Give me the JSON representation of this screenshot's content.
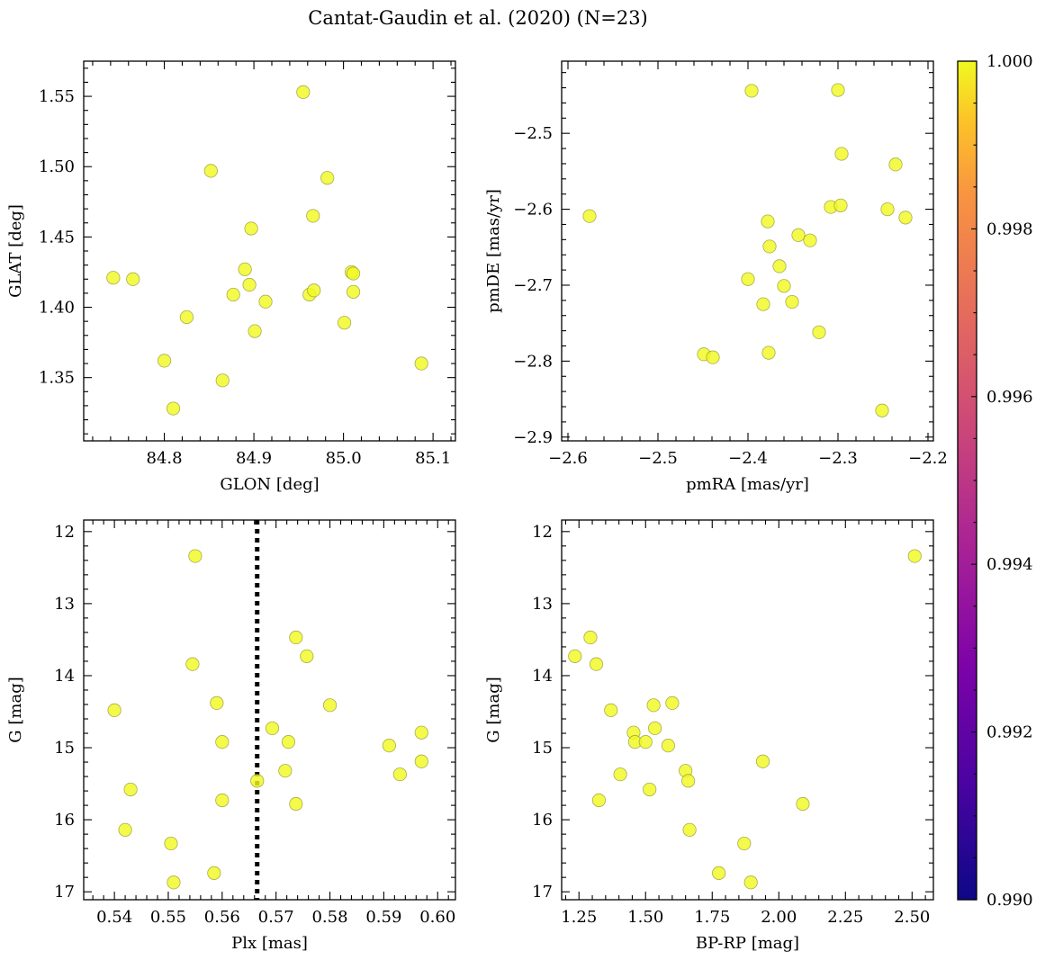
{
  "figure": {
    "title": "Cantat-Gaudin et al. (2020) (N=23)"
  },
  "colorbar": {
    "colormap": "plasma",
    "range": [
      0.99,
      1.0
    ],
    "ticks": [
      0.99,
      0.992,
      0.994,
      0.996,
      0.998,
      1.0
    ],
    "tick_labels": [
      "0.990",
      "0.992",
      "0.994",
      "0.996",
      "0.998",
      "1.000"
    ]
  },
  "chart_data": [
    {
      "type": "scatter",
      "id": "glon-glat",
      "xlabel": "GLON [deg]",
      "ylabel": "GLAT [deg]",
      "xlim": [
        84.71,
        85.125
      ],
      "ylim": [
        1.305,
        1.575
      ],
      "xticks": [
        84.8,
        84.9,
        85.0,
        85.1
      ],
      "xtick_labels": [
        "84.8",
        "84.9",
        "85.0",
        "85.1"
      ],
      "yticks": [
        1.35,
        1.4,
        1.45,
        1.5,
        1.55
      ],
      "ytick_labels": [
        "1.35",
        "1.40",
        "1.45",
        "1.50",
        "1.55"
      ],
      "point_color": "#f0f921",
      "x": [
        84.743,
        84.765,
        84.8,
        84.81,
        84.825,
        84.852,
        84.865,
        84.877,
        84.89,
        84.895,
        84.897,
        84.901,
        84.913,
        84.955,
        84.962,
        84.966,
        84.967,
        84.982,
        85.001,
        85.009,
        85.011,
        85.011,
        85.087
      ],
      "y": [
        1.421,
        1.42,
        1.362,
        1.328,
        1.393,
        1.497,
        1.348,
        1.409,
        1.427,
        1.416,
        1.456,
        1.383,
        1.404,
        1.553,
        1.409,
        1.465,
        1.412,
        1.492,
        1.389,
        1.425,
        1.424,
        1.411,
        1.36
      ]
    },
    {
      "type": "scatter",
      "id": "pmra-pmde",
      "xlabel": "pmRA [mas/yr]",
      "ylabel": "pmDE [mas/yr]",
      "xlim": [
        -2.607,
        -2.194
      ],
      "ylim": [
        -2.905,
        -2.405
      ],
      "xticks": [
        -2.6,
        -2.5,
        -2.4,
        -2.3,
        -2.2
      ],
      "xtick_labels": [
        "−2.6",
        "−2.5",
        "−2.4",
        "−2.3",
        "−2.2"
      ],
      "yticks": [
        -2.9,
        -2.8,
        -2.7,
        -2.6,
        -2.5
      ],
      "ytick_labels": [
        "−2.9",
        "−2.8",
        "−2.7",
        "−2.6",
        "−2.5"
      ],
      "point_color": "#f0f921",
      "x": [
        -2.576,
        -2.449,
        -2.439,
        -2.4,
        -2.396,
        -2.383,
        -2.378,
        -2.377,
        -2.376,
        -2.365,
        -2.36,
        -2.351,
        -2.344,
        -2.331,
        -2.321,
        -2.308,
        -2.3,
        -2.297,
        -2.296,
        -2.251,
        -2.245,
        -2.236,
        -2.225
      ],
      "y": [
        -2.609,
        -2.791,
        -2.795,
        -2.692,
        -2.444,
        -2.725,
        -2.616,
        -2.789,
        -2.649,
        -2.675,
        -2.701,
        -2.722,
        -2.634,
        -2.641,
        -2.762,
        -2.597,
        -2.443,
        -2.595,
        -2.527,
        -2.865,
        -2.6,
        -2.541,
        -2.611
      ]
    },
    {
      "type": "scatter",
      "id": "plx-g",
      "xlabel": "Plx [mas]",
      "ylabel": "G [mag]",
      "xlim": [
        0.5343,
        0.6033
      ],
      "ylim": [
        17.11,
        11.84
      ],
      "y_inverted": true,
      "xticks": [
        0.54,
        0.55,
        0.56,
        0.57,
        0.58,
        0.59,
        0.6
      ],
      "xtick_labels": [
        "0.54",
        "0.55",
        "0.56",
        "0.57",
        "0.58",
        "0.59",
        "0.60"
      ],
      "yticks": [
        12,
        13,
        14,
        15,
        16,
        17
      ],
      "ytick_labels": [
        "12",
        "13",
        "14",
        "15",
        "16",
        "17"
      ],
      "point_color": "#f0f921",
      "vline": {
        "x": 0.5665,
        "style": "dotted"
      },
      "x": [
        0.54,
        0.542,
        0.543,
        0.5505,
        0.551,
        0.5545,
        0.555,
        0.5585,
        0.559,
        0.56,
        0.56,
        0.5665,
        0.5693,
        0.5717,
        0.5723,
        0.5737,
        0.5737,
        0.5757,
        0.58,
        0.591,
        0.593,
        0.597,
        0.597
      ],
      "y": [
        14.48,
        16.14,
        15.58,
        16.33,
        16.87,
        13.84,
        12.34,
        16.74,
        14.38,
        14.92,
        15.73,
        15.46,
        14.73,
        15.32,
        14.92,
        13.47,
        15.78,
        13.73,
        14.41,
        14.97,
        15.37,
        14.79,
        15.19
      ]
    },
    {
      "type": "scatter",
      "id": "bprp-g",
      "xlabel": "BP-RP [mag]",
      "ylabel": "G [mag]",
      "xlim": [
        1.185,
        2.58
      ],
      "ylim": [
        17.11,
        11.84
      ],
      "y_inverted": true,
      "xticks": [
        1.25,
        1.5,
        1.75,
        2.0,
        2.25,
        2.5
      ],
      "xtick_labels": [
        "1.25",
        "1.50",
        "1.75",
        "2.00",
        "2.25",
        "2.50"
      ],
      "yticks": [
        12,
        13,
        14,
        15,
        16,
        17
      ],
      "ytick_labels": [
        "12",
        "13",
        "14",
        "15",
        "16",
        "17"
      ],
      "point_color": "#f0f921",
      "x": [
        1.235,
        1.293,
        1.315,
        1.325,
        1.37,
        1.405,
        1.455,
        1.46,
        1.5,
        1.515,
        1.53,
        1.535,
        1.585,
        1.6,
        1.65,
        1.66,
        1.665,
        1.775,
        1.87,
        1.895,
        1.94,
        2.09,
        2.51
      ],
      "y": [
        13.73,
        13.47,
        13.84,
        15.73,
        14.48,
        15.37,
        14.79,
        14.92,
        14.92,
        15.58,
        14.41,
        14.73,
        14.97,
        14.38,
        15.32,
        15.46,
        16.14,
        16.74,
        16.33,
        16.87,
        15.19,
        15.78,
        12.34
      ]
    }
  ]
}
